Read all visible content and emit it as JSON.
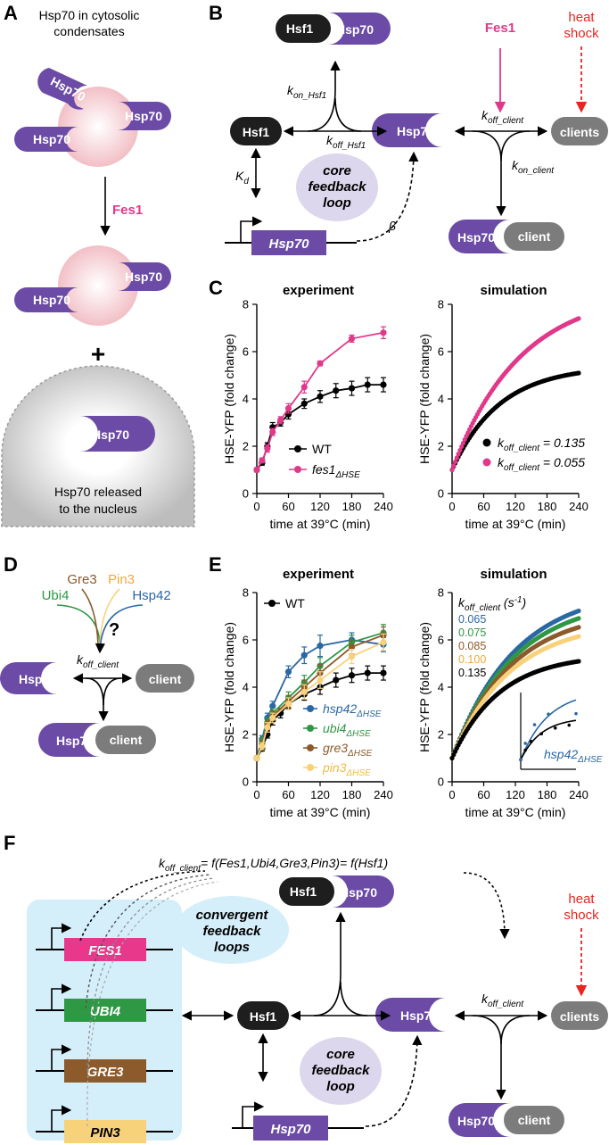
{
  "colors": {
    "purple": "#6B4BA5",
    "magenta": "#E0398A",
    "red": "#E8251F",
    "black_pill": "#1E1E1E",
    "gray_pill": "#7C7C7C",
    "lavender": "#DCD7EC",
    "light_blue": "#D4EEFA",
    "wt": "#000000",
    "fes1": "#E0398A",
    "hsp42": "#2A67A5",
    "ubi4": "#2E9845",
    "gre3": "#8C5A2B",
    "pin3": "#F8D27A",
    "condensate": "#F4C7CC"
  },
  "panelA": {
    "letter": "A",
    "title_line1": "Hsp70 in cytosolic",
    "title_line2": "condensates",
    "hsp70": "Hsp70",
    "fes1": "Fes1",
    "plus": "+",
    "caption_line1": "Hsp70 released",
    "caption_line2": "to the nucleus"
  },
  "panelB": {
    "letter": "B",
    "hsf1": "Hsf1",
    "hsp70": "Hsp70",
    "clients": "clients",
    "client": "client",
    "fes1": "Fes1",
    "heat_shock_line1": "heat",
    "heat_shock_line2": "shock",
    "k_on_hsf1": "k",
    "k_on_hsf1_sub": "on_Hsf1",
    "k_off_hsf1": "k",
    "k_off_hsf1_sub": "off_Hsf1",
    "k_off_client": "k",
    "k_off_client_sub": "off_client",
    "k_on_client": "k",
    "k_on_client_sub": "on_client",
    "kd": "K",
    "kd_sub": "d",
    "beta": "β",
    "core_line1": "core",
    "core_line2": "feedback",
    "core_line3": "loop",
    "gene": "Hsp70"
  },
  "panelC": {
    "letter": "C",
    "experiment_title": "experiment",
    "simulation_title": "simulation",
    "ylabel": "HSE-YFP (fold change)",
    "xlabel": "time at 39°C (min)",
    "legend_wt": "WT",
    "legend_fes1": "fes1",
    "legend_fes1_sub": "ΔHSE",
    "sim_legend1_k": "k",
    "sim_legend1_sub": "off_client",
    "sim_legend1_val": " = 0.135",
    "sim_legend2_k": "k",
    "sim_legend2_sub": "off_client",
    "sim_legend2_val": " = 0.055"
  },
  "panelD": {
    "letter": "D",
    "gre3": "Gre3",
    "pin3": "Pin3",
    "ubi4": "Ubi4",
    "hsp42": "Hsp42",
    "question": "?",
    "k": "k",
    "k_sub": "off_client",
    "hsp70": "Hsp70",
    "client": "client"
  },
  "panelE": {
    "letter": "E",
    "experiment_title": "experiment",
    "simulation_title": "simulation",
    "ylabel": "HSE-YFP (fold change)",
    "xlabel": "time at 39°C (min)",
    "legend_wt": "WT",
    "legend_hsp42": "hsp42",
    "legend_ubi4": "ubi4",
    "legend_gre3": "gre3",
    "legend_pin3": "pin3",
    "legend_sub": "ΔHSE",
    "sim_k": "k",
    "sim_k_sub": "off_client",
    "sim_units": " (s",
    "sim_units_sup": "-1",
    "sim_units_end": ")",
    "sim_values": [
      "0.065",
      "0.075",
      "0.085",
      "0.100",
      "0.135"
    ],
    "inset_label": "hsp42",
    "inset_label_sub": "ΔHSE"
  },
  "panelF": {
    "letter": "F",
    "eq_k": "k",
    "eq_sub": "off_client",
    "eq_rest": "= f(Fes1,Ubi4,Gre3,Pin3)= f(Hsf1)",
    "genes": [
      "FES1",
      "UBI4",
      "GRE3",
      "PIN3"
    ],
    "convergent_line1": "convergent",
    "convergent_line2": "feedback",
    "convergent_line3": "loops",
    "core_line1": "core",
    "core_line2": "feedback",
    "core_line3": "loop",
    "hsf1": "Hsf1",
    "hsp70": "Hsp70",
    "clients": "clients",
    "client": "client",
    "k": "k",
    "k_sub": "off_client",
    "heat_shock_line1": "heat",
    "heat_shock_line2": "shock",
    "gene": "Hsp70"
  },
  "chart_data": [
    {
      "id": "C-experiment",
      "type": "line",
      "title": "experiment",
      "xlabel": "time at 39°C (min)",
      "ylabel": "HSE-YFP (fold change)",
      "xlim": [
        0,
        240
      ],
      "ylim": [
        0,
        8
      ],
      "xticks": [
        0,
        60,
        120,
        180,
        240
      ],
      "yticks": [
        0,
        2,
        4,
        6,
        8
      ],
      "series": [
        {
          "name": "WT",
          "color": "#000000",
          "x": [
            0,
            10,
            20,
            30,
            45,
            60,
            90,
            120,
            150,
            180,
            210,
            240
          ],
          "y": [
            1.0,
            1.3,
            2.0,
            2.8,
            3.0,
            3.35,
            3.8,
            4.1,
            4.35,
            4.45,
            4.6,
            4.6
          ],
          "err": [
            0.08,
            0.1,
            0.15,
            0.2,
            0.15,
            0.2,
            0.2,
            0.25,
            0.3,
            0.3,
            0.3,
            0.3
          ]
        },
        {
          "name": "fes1ΔHSE",
          "color": "#E0398A",
          "x": [
            0,
            10,
            20,
            30,
            45,
            60,
            90,
            120,
            180,
            240
          ],
          "y": [
            1.0,
            1.4,
            1.9,
            2.6,
            3.1,
            3.6,
            4.5,
            5.5,
            6.55,
            6.8
          ],
          "err": [
            0.08,
            0.1,
            0.15,
            0.15,
            0.15,
            0.2,
            0.25,
            0.1,
            0.15,
            0.25
          ]
        }
      ]
    },
    {
      "id": "C-simulation",
      "type": "scatter",
      "title": "simulation",
      "xlabel": "time at 39°C (min)",
      "ylabel": "HSE-YFP (fold change)",
      "xlim": [
        0,
        240
      ],
      "ylim": [
        0,
        8
      ],
      "xticks": [
        0,
        60,
        120,
        180,
        240
      ],
      "yticks": [
        0,
        2,
        4,
        6,
        8
      ],
      "series": [
        {
          "name": "koff_client = 0.135",
          "color": "#000000",
          "k": 0.135,
          "plateau": 5.4,
          "tau": 90
        },
        {
          "name": "koff_client = 0.055",
          "color": "#E0398A",
          "k": 0.055,
          "plateau": 8.6,
          "tau": 130
        }
      ]
    },
    {
      "id": "E-experiment",
      "type": "line",
      "title": "experiment",
      "xlabel": "time at 39°C (min)",
      "ylabel": "HSE-YFP (fold change)",
      "xlim": [
        0,
        240
      ],
      "ylim": [
        0,
        8
      ],
      "xticks": [
        0,
        60,
        120,
        180,
        240
      ],
      "yticks": [
        0,
        2,
        4,
        6,
        8
      ],
      "series": [
        {
          "name": "WT",
          "color": "#000000",
          "x": [
            0,
            10,
            20,
            30,
            45,
            60,
            90,
            120,
            150,
            180,
            210,
            240
          ],
          "y": [
            1.0,
            1.4,
            2.0,
            2.6,
            2.9,
            3.3,
            3.7,
            4.0,
            4.3,
            4.5,
            4.6,
            4.6
          ],
          "err": [
            0.08,
            0.1,
            0.15,
            0.2,
            0.2,
            0.2,
            0.25,
            0.3,
            0.3,
            0.3,
            0.3,
            0.3
          ]
        },
        {
          "name": "hsp42ΔHSE",
          "color": "#2A67A5",
          "x": [
            0,
            10,
            20,
            30,
            60,
            90,
            120,
            180,
            240
          ],
          "y": [
            1.0,
            1.8,
            2.7,
            3.2,
            4.65,
            5.35,
            5.75,
            6.0,
            5.8
          ],
          "err": [
            0.08,
            0.15,
            0.2,
            0.2,
            0.25,
            0.35,
            0.45,
            0.3,
            0.3
          ]
        },
        {
          "name": "ubi4ΔHSE",
          "color": "#2E9845",
          "x": [
            0,
            10,
            20,
            30,
            60,
            90,
            120,
            180,
            240
          ],
          "y": [
            1.0,
            1.7,
            2.5,
            2.9,
            3.55,
            4.2,
            4.9,
            5.9,
            6.3
          ],
          "err": [
            0.08,
            0.15,
            0.2,
            0.2,
            0.25,
            0.3,
            0.35,
            0.3,
            0.35
          ]
        },
        {
          "name": "gre3ΔHSE",
          "color": "#8C5A2B",
          "x": [
            0,
            10,
            20,
            30,
            60,
            90,
            120,
            180,
            240
          ],
          "y": [
            1.0,
            1.6,
            2.4,
            2.8,
            3.4,
            4.0,
            4.6,
            5.7,
            6.2
          ],
          "err": [
            0.08,
            0.15,
            0.2,
            0.2,
            0.25,
            0.3,
            0.35,
            0.3,
            0.35
          ]
        },
        {
          "name": "pin3ΔHSE",
          "color": "#F8D27A",
          "x": [
            0,
            10,
            20,
            30,
            60,
            90,
            120,
            180,
            240
          ],
          "y": [
            1.0,
            1.5,
            2.3,
            2.7,
            3.3,
            3.8,
            4.3,
            5.3,
            5.9
          ],
          "err": [
            0.08,
            0.15,
            0.2,
            0.2,
            0.25,
            0.3,
            0.35,
            0.3,
            0.35
          ]
        }
      ]
    },
    {
      "id": "E-simulation",
      "type": "scatter",
      "title": "simulation",
      "xlabel": "time at 39°C (min)",
      "ylabel": "HSE-YFP (fold change)",
      "xlim": [
        0,
        240
      ],
      "ylim": [
        0,
        8
      ],
      "xticks": [
        0,
        60,
        120,
        180,
        240
      ],
      "yticks": [
        0,
        2,
        4,
        6,
        8
      ],
      "series": [
        {
          "name": "0.065",
          "color": "#2A67A5",
          "k": 0.065,
          "plateau": 8.2,
          "tau": 120
        },
        {
          "name": "0.075",
          "color": "#2E9845",
          "k": 0.075,
          "plateau": 7.8,
          "tau": 118
        },
        {
          "name": "0.085",
          "color": "#8C5A2B",
          "k": 0.085,
          "plateau": 7.3,
          "tau": 114
        },
        {
          "name": "0.100",
          "color": "#F8D27A",
          "k": 0.1,
          "plateau": 6.8,
          "tau": 110
        },
        {
          "name": "0.135",
          "color": "#000000",
          "k": 0.135,
          "plateau": 5.4,
          "tau": 90
        }
      ]
    }
  ]
}
